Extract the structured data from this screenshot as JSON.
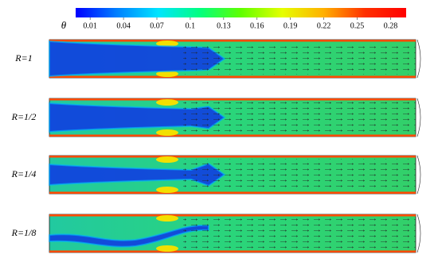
{
  "chart_data": {
    "type": "contour",
    "colorbar_label": "θ",
    "clim": [
      -0.003,
      0.294
    ],
    "cticks": [
      0.01,
      0.04,
      0.07,
      0.1,
      0.13,
      0.16,
      0.19,
      0.22,
      0.25,
      0.28
    ],
    "colormap": [
      "#0000ff",
      "#0080ff",
      "#00e5ff",
      "#00ff80",
      "#5fff00",
      "#e5ff00",
      "#ffb000",
      "#ff3000",
      "#ff0000"
    ],
    "panels": [
      {
        "label": "R=1"
      },
      {
        "label": "R=1/2"
      },
      {
        "label": "R=1/4"
      },
      {
        "label": "R=1/8"
      }
    ]
  }
}
